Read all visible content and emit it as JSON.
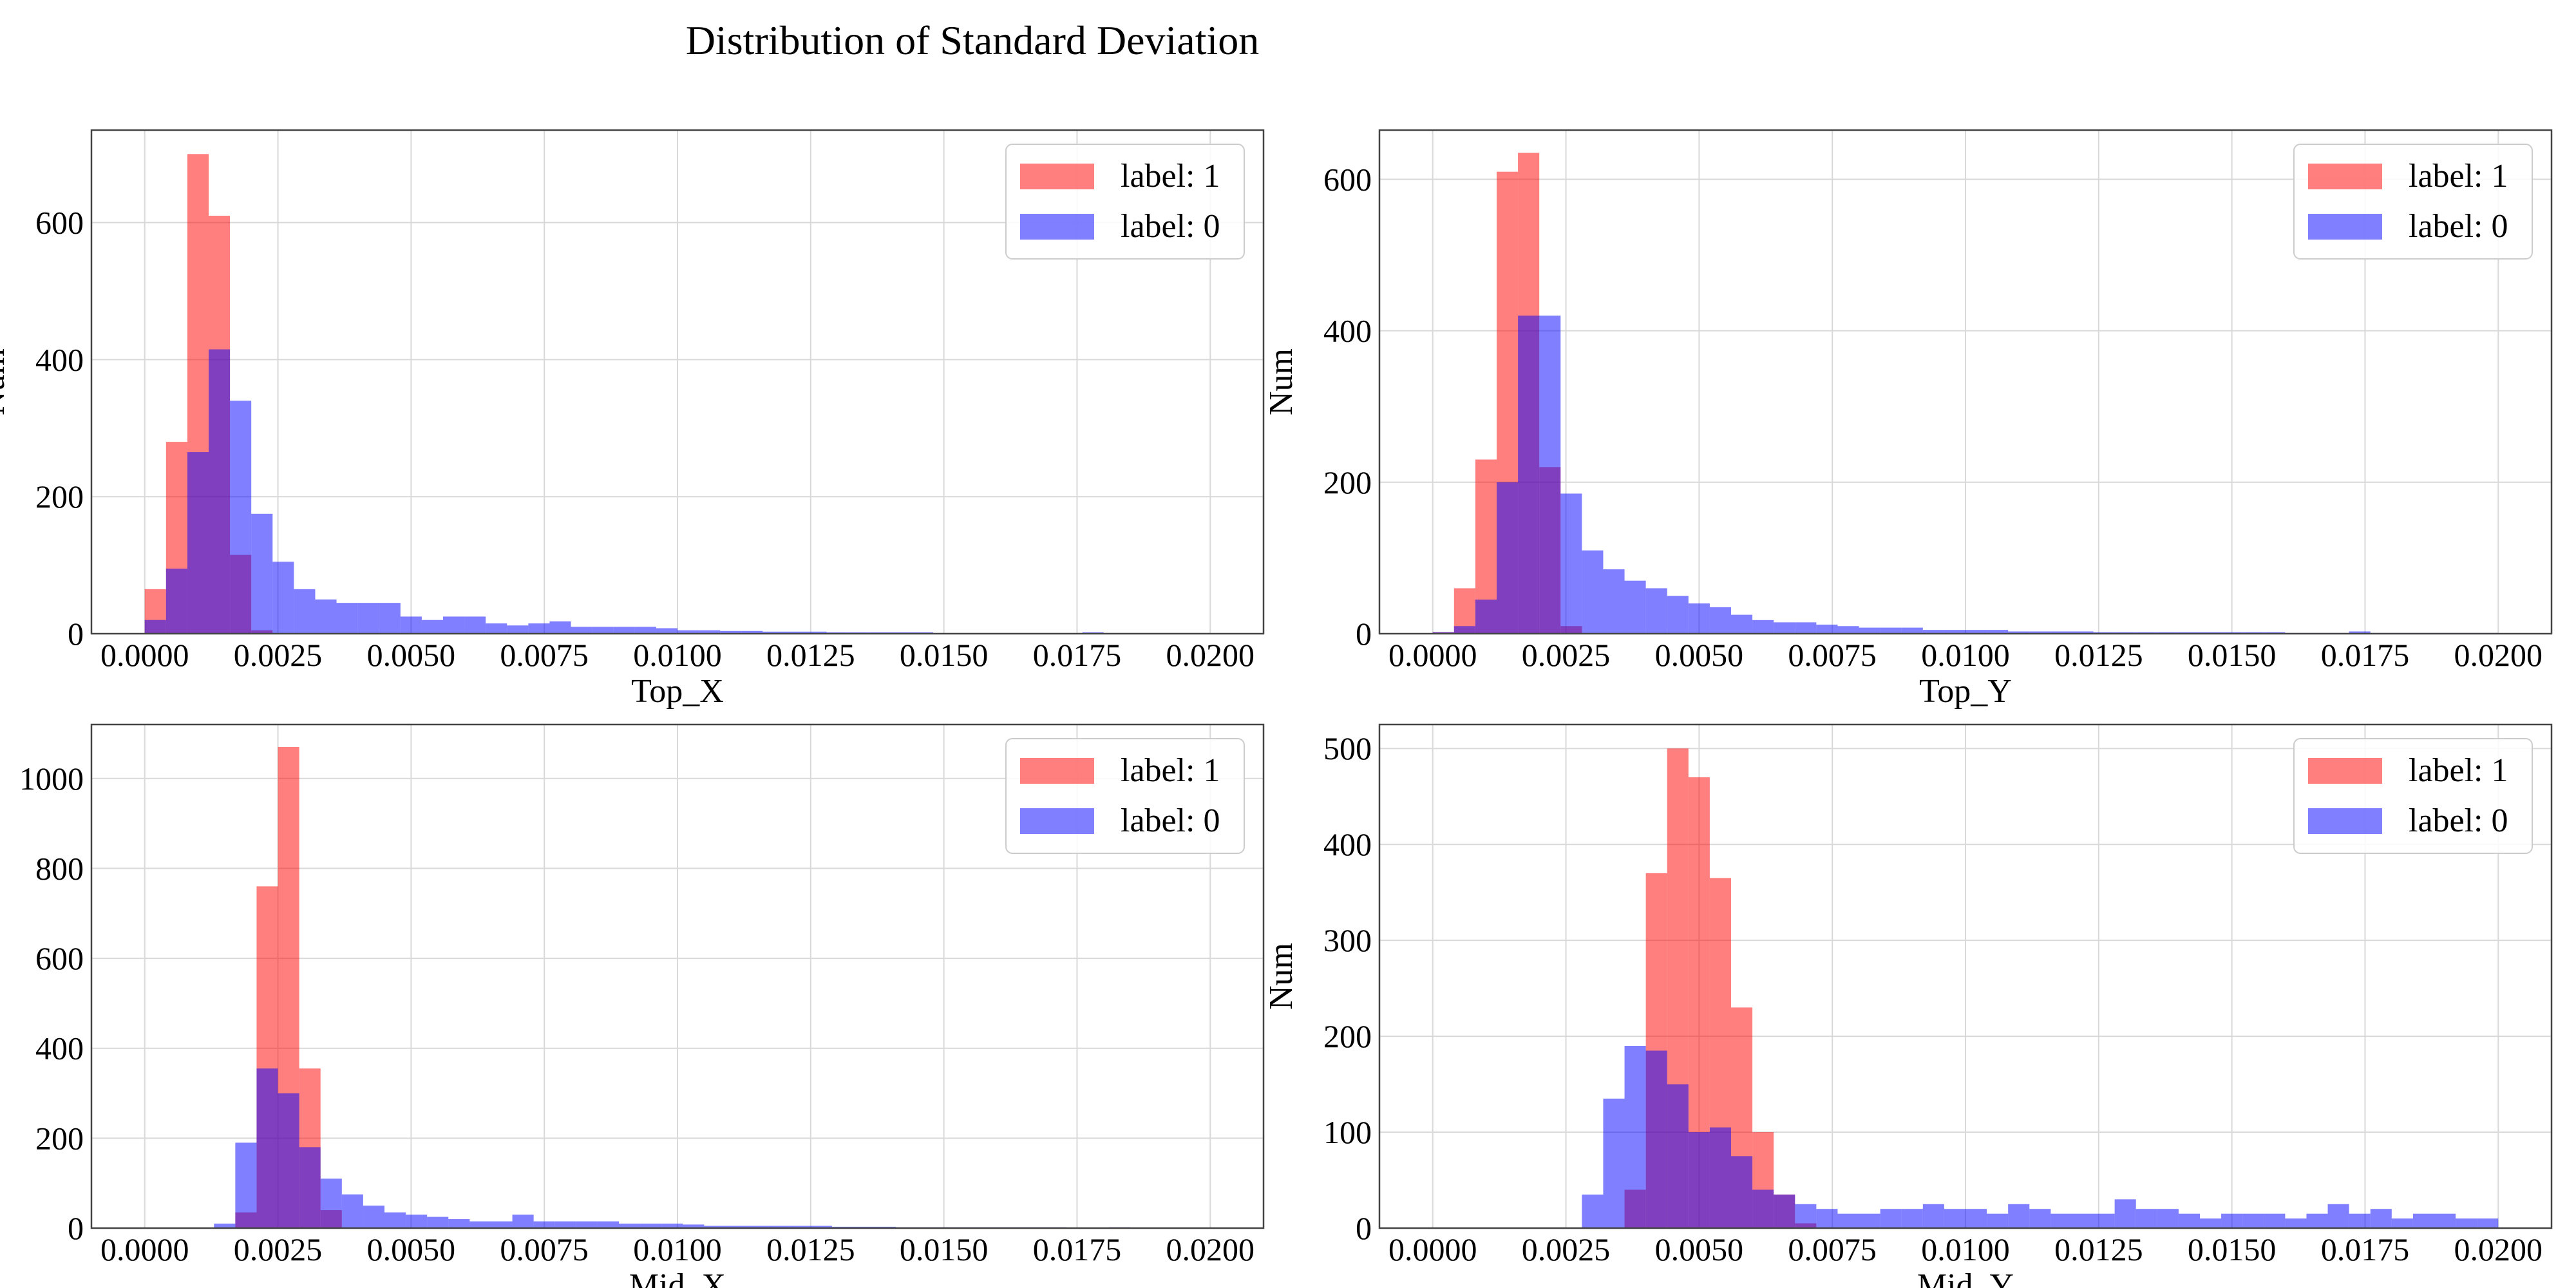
{
  "figure": {
    "title": "Distribution of Standard Deviation"
  },
  "chart_data": [
    {
      "type": "bar",
      "title": "",
      "xlabel": "Top_X",
      "ylabel": "Num",
      "xlim": [
        -0.001,
        0.021
      ],
      "ylim": [
        0,
        735
      ],
      "xticks": [
        "0.0000",
        "0.0025",
        "0.0050",
        "0.0075",
        "0.0100",
        "0.0125",
        "0.0150",
        "0.0175",
        "0.0200"
      ],
      "yticks": [
        0,
        200,
        400,
        600
      ],
      "legend": "top-right",
      "bin_start": 0.0,
      "bin_width": 0.0004,
      "series": [
        {
          "name": "label: 1",
          "color": "#ff0000",
          "values": [
            65,
            280,
            700,
            610,
            115,
            5,
            0,
            0,
            0,
            0,
            0,
            0,
            0,
            0,
            0,
            0,
            0,
            0,
            0,
            0,
            0,
            0,
            0,
            0,
            0,
            0,
            0,
            0,
            0,
            0,
            0,
            0,
            0,
            0,
            0,
            0,
            0,
            0,
            0,
            0,
            0,
            0,
            0,
            0,
            0,
            0,
            0,
            0,
            0,
            0
          ]
        },
        {
          "name": "label: 0",
          "color": "#0000ff",
          "values": [
            20,
            95,
            265,
            415,
            340,
            175,
            105,
            65,
            50,
            45,
            45,
            45,
            25,
            20,
            25,
            25,
            15,
            12,
            15,
            18,
            10,
            10,
            10,
            10,
            8,
            5,
            5,
            4,
            4,
            3,
            3,
            3,
            2,
            2,
            2,
            2,
            2,
            1,
            1,
            1,
            1,
            1,
            1,
            1,
            2,
            1,
            1,
            1,
            1,
            1
          ]
        }
      ]
    },
    {
      "type": "bar",
      "title": "",
      "xlabel": "Top_Y",
      "ylabel": "Num",
      "xlim": [
        -0.001,
        0.021
      ],
      "ylim": [
        0,
        665
      ],
      "xticks": [
        "0.0000",
        "0.0025",
        "0.0050",
        "0.0075",
        "0.0100",
        "0.0125",
        "0.0150",
        "0.0175",
        "0.0200"
      ],
      "yticks": [
        0,
        200,
        400,
        600
      ],
      "legend": "top-right",
      "bin_start": 0.0,
      "bin_width": 0.0004,
      "series": [
        {
          "name": "label: 1",
          "color": "#ff0000",
          "values": [
            2,
            60,
            230,
            610,
            635,
            220,
            10,
            0,
            0,
            0,
            0,
            0,
            0,
            0,
            0,
            0,
            0,
            0,
            0,
            0,
            0,
            0,
            0,
            0,
            0,
            0,
            0,
            0,
            0,
            0,
            0,
            0,
            0,
            0,
            0,
            0,
            0,
            0,
            0,
            0,
            0,
            0,
            0,
            0,
            0,
            0,
            0,
            0,
            0,
            0
          ]
        },
        {
          "name": "label: 0",
          "color": "#0000ff",
          "values": [
            2,
            10,
            45,
            200,
            420,
            420,
            185,
            110,
            85,
            70,
            60,
            50,
            40,
            35,
            25,
            18,
            15,
            15,
            12,
            10,
            8,
            8,
            8,
            5,
            5,
            5,
            5,
            3,
            3,
            3,
            3,
            2,
            2,
            2,
            2,
            2,
            2,
            2,
            2,
            2,
            1,
            1,
            1,
            3,
            1,
            1,
            1,
            1,
            1,
            1
          ]
        }
      ]
    },
    {
      "type": "bar",
      "title": "",
      "xlabel": "Mid_X",
      "ylabel": "",
      "xlim": [
        -0.001,
        0.021
      ],
      "ylim": [
        0,
        1120
      ],
      "xticks": [
        "0.0000",
        "0.0025",
        "0.0050",
        "0.0075",
        "0.0100",
        "0.0125",
        "0.0150",
        "0.0175",
        "0.0200"
      ],
      "yticks": [
        0,
        200,
        400,
        600,
        800,
        1000
      ],
      "legend": "top-right",
      "bin_start": 0.0013,
      "bin_width": 0.0004,
      "series": [
        {
          "name": "label: 1",
          "color": "#ff0000",
          "values": [
            0,
            35,
            760,
            1070,
            355,
            40,
            0,
            0,
            0,
            0,
            0,
            0,
            0,
            0,
            0,
            0,
            0,
            0,
            0,
            0,
            0,
            0,
            0,
            0,
            0,
            0,
            0,
            0,
            0,
            0,
            0,
            0,
            0,
            0,
            0,
            0,
            0,
            0,
            0,
            0,
            0,
            0,
            0,
            0,
            0,
            0,
            0
          ]
        },
        {
          "name": "label: 0",
          "color": "#0000ff",
          "values": [
            10,
            190,
            355,
            300,
            180,
            110,
            75,
            50,
            35,
            30,
            25,
            20,
            15,
            15,
            30,
            15,
            15,
            15,
            15,
            10,
            10,
            10,
            8,
            5,
            5,
            5,
            5,
            5,
            5,
            3,
            3,
            3,
            2,
            2,
            2,
            2,
            2,
            2,
            2,
            2,
            1,
            1,
            2,
            1,
            1,
            1,
            1
          ]
        }
      ]
    },
    {
      "type": "bar",
      "title": "",
      "xlabel": "Mid_Y",
      "ylabel": "Num",
      "xlim": [
        -0.001,
        0.021
      ],
      "ylim": [
        0,
        525
      ],
      "xticks": [
        "0.0000",
        "0.0025",
        "0.0050",
        "0.0075",
        "0.0100",
        "0.0125",
        "0.0150",
        "0.0175",
        "0.0200"
      ],
      "yticks": [
        0,
        100,
        200,
        300,
        400,
        500
      ],
      "legend": "top-right",
      "bin_start": 0.0028,
      "bin_width": 0.0004,
      "series": [
        {
          "name": "label: 1",
          "color": "#ff0000",
          "values": [
            0,
            0,
            40,
            370,
            500,
            470,
            365,
            230,
            100,
            35,
            5,
            0,
            0,
            0,
            0,
            0,
            0,
            0,
            0,
            0,
            0,
            0,
            0,
            0,
            0,
            0,
            0,
            0,
            0,
            0,
            0,
            0,
            0,
            0,
            0,
            0,
            0,
            0,
            0,
            0,
            0,
            0,
            0
          ]
        },
        {
          "name": "label: 0",
          "color": "#0000ff",
          "values": [
            35,
            135,
            190,
            185,
            150,
            100,
            105,
            75,
            40,
            35,
            25,
            20,
            15,
            15,
            20,
            20,
            25,
            20,
            20,
            15,
            25,
            20,
            15,
            15,
            15,
            30,
            20,
            20,
            15,
            10,
            15,
            15,
            15,
            10,
            15,
            25,
            15,
            20,
            10,
            15,
            15,
            10,
            10
          ]
        }
      ]
    }
  ]
}
